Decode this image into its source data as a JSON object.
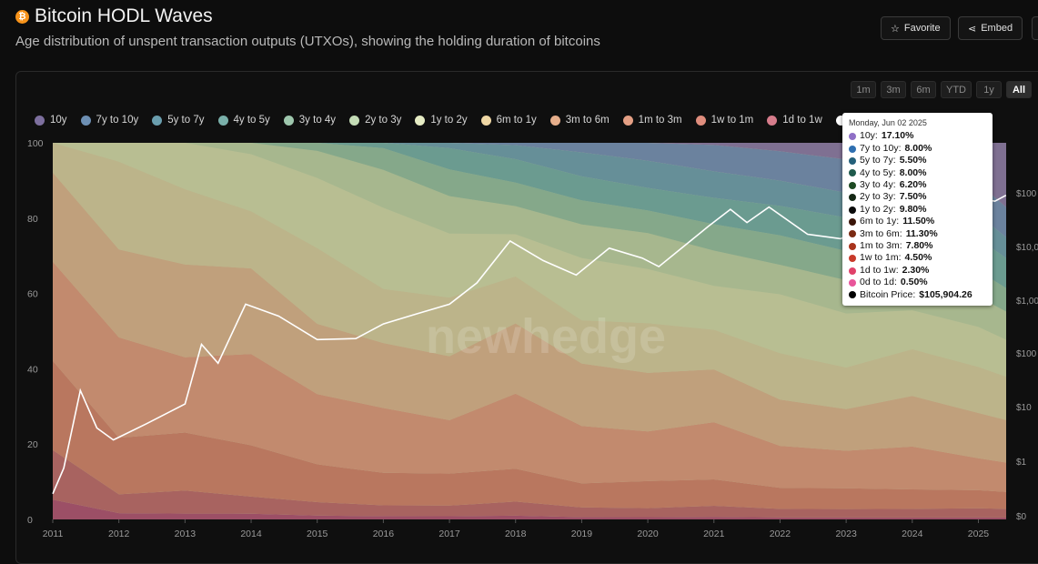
{
  "header": {
    "title": "Bitcoin HODL Waves",
    "subtitle": "Age distribution of unspent transaction outputs (UTXOs), showing the holding duration of bitcoins",
    "favorite_label": "Favorite",
    "embed_label": "Embed"
  },
  "range_buttons": [
    "1m",
    "3m",
    "6m",
    "YTD",
    "1y",
    "All"
  ],
  "active_range": "All",
  "watermark": "newhedge",
  "tooltip": {
    "date": "Monday, Jun 02 2025",
    "rows": [
      {
        "label": "10y:",
        "value": "17.10%",
        "color": "#8f6fc6"
      },
      {
        "label": "7y to 10y:",
        "value": "8.00%",
        "color": "#2f6fb0"
      },
      {
        "label": "5y to 7y:",
        "value": "5.50%",
        "color": "#24607a"
      },
      {
        "label": "4y to 5y:",
        "value": "8.00%",
        "color": "#1f5a4c"
      },
      {
        "label": "3y to 4y:",
        "value": "6.20%",
        "color": "#1d4a22"
      },
      {
        "label": "2y to 3y:",
        "value": "7.50%",
        "color": "#142814"
      },
      {
        "label": "1y to 2y:",
        "value": "9.80%",
        "color": "#0b0b0b"
      },
      {
        "label": "6m to 1y:",
        "value": "11.50%",
        "color": "#3a1408"
      },
      {
        "label": "3m to 6m:",
        "value": "11.30%",
        "color": "#7a2a12"
      },
      {
        "label": "1m to 3m:",
        "value": "7.80%",
        "color": "#a8331c"
      },
      {
        "label": "1w to 1m:",
        "value": "4.50%",
        "color": "#c83a2a"
      },
      {
        "label": "1d to 1w:",
        "value": "2.30%",
        "color": "#e0426a"
      },
      {
        "label": "0d to 1d:",
        "value": "0.50%",
        "color": "#e8559a"
      },
      {
        "label": "Bitcoin Price:",
        "value": "$105,904.26",
        "color": "#000000"
      }
    ]
  },
  "chart_data": {
    "type": "area",
    "stacked": true,
    "x": [
      "2011",
      "2012",
      "2013",
      "2014",
      "2015",
      "2016",
      "2017",
      "2018",
      "2019",
      "2020",
      "2021",
      "2022",
      "2023",
      "2024",
      "2025",
      "Jun 2025"
    ],
    "x_tick_labels": [
      "2011",
      "2012",
      "2013",
      "2014",
      "2015",
      "2016",
      "2017",
      "2018",
      "2019",
      "2020",
      "2021",
      "2022",
      "2023",
      "2024",
      "2025"
    ],
    "ylim": [
      0,
      100
    ],
    "y_ticks": [
      0,
      20,
      40,
      60,
      80,
      100
    ],
    "y_right_labels": [
      "$0",
      "$1",
      "$10",
      "$100",
      "$1,00",
      "$10,0",
      "$100"
    ],
    "y_right_log": true,
    "grid": false,
    "legend_position": "top",
    "legend": [
      {
        "name": "10y",
        "color": "#7d6f9e"
      },
      {
        "name": "7y to 10y",
        "color": "#6d8fb3"
      },
      {
        "name": "5y to 7y",
        "color": "#6a9eae"
      },
      {
        "name": "4y to 5y",
        "color": "#7ab0aa"
      },
      {
        "name": "3y to 4y",
        "color": "#9ec7ad"
      },
      {
        "name": "2y to 3y",
        "color": "#c4dcb6"
      },
      {
        "name": "1y to 2y",
        "color": "#e6ecc4"
      },
      {
        "name": "6m to 1y",
        "color": "#efd7a4"
      },
      {
        "name": "3m to 6m",
        "color": "#e6ae8b"
      },
      {
        "name": "1m to 3m",
        "color": "#e49f84"
      },
      {
        "name": "1w to 1m",
        "color": "#df8d7d"
      },
      {
        "name": "1d to 1w",
        "color": "#d67c8b"
      },
      {
        "name": "Bitcoin Price",
        "color": "#ffffff"
      }
    ],
    "series": [
      {
        "name": "10y",
        "color": "#7f7092",
        "values": [
          0,
          0,
          0,
          0,
          0,
          0,
          0,
          0,
          0,
          0,
          0.5,
          2,
          4,
          7,
          10,
          17.1
        ]
      },
      {
        "name": "7y to 10y",
        "color": "#6b829e",
        "values": [
          0,
          0,
          0,
          0,
          0,
          0,
          0,
          0.5,
          2,
          4,
          6,
          7,
          8,
          8,
          8,
          8.0
        ]
      },
      {
        "name": "5y to 7y",
        "color": "#668f98",
        "values": [
          0,
          0,
          0,
          0,
          0,
          0,
          1,
          3,
          5,
          6,
          6,
          6,
          6,
          6,
          6,
          5.5
        ]
      },
      {
        "name": "4y to 5y",
        "color": "#6b9b90",
        "values": [
          0,
          0,
          0,
          0,
          0,
          1,
          4,
          5,
          5,
          5,
          6,
          7,
          8,
          8,
          8,
          8.0
        ]
      },
      {
        "name": "3y to 4y",
        "color": "#85a88a",
        "values": [
          0,
          0,
          0,
          0,
          1.5,
          4,
          5,
          5,
          5,
          5,
          6,
          7,
          7,
          7,
          6.5,
          6.2
        ]
      },
      {
        "name": "2y to 3y",
        "color": "#a7b78e",
        "values": [
          0,
          0,
          0,
          2,
          5,
          7,
          7,
          6,
          7,
          8,
          8,
          7,
          8,
          7,
          7.5,
          7.5
        ]
      },
      {
        "name": "1y to 2y",
        "color": "#b8be92",
        "values": [
          0,
          3,
          8,
          10,
          13,
          15,
          12,
          9,
          13,
          12,
          10,
          14,
          13,
          10,
          10,
          9.8
        ]
      },
      {
        "name": "6m to 1y",
        "color": "#bcb48a",
        "values": [
          6,
          14,
          13,
          10,
          14,
          10,
          11,
          10,
          9,
          11,
          9,
          11,
          10,
          12,
          11.5,
          11.5
        ]
      },
      {
        "name": "3m to 6m",
        "color": "#c0a07c",
        "values": [
          18,
          14,
          16,
          15,
          13,
          12,
          12,
          15,
          13,
          13,
          12,
          11,
          10,
          13,
          11.3,
          11.3
        ]
      },
      {
        "name": "1m to 3m",
        "color": "#c28a6e",
        "values": [
          20,
          16,
          13,
          16,
          13,
          12,
          10,
          16,
          12,
          11,
          13,
          10,
          9,
          11,
          8,
          7.8
        ]
      },
      {
        "name": "1w to 1m",
        "color": "#b9775f",
        "values": [
          18,
          9,
          10,
          9,
          7,
          6,
          6,
          7,
          5,
          6,
          6,
          5,
          5,
          5,
          4.5,
          4.5
        ]
      },
      {
        "name": "1d to 1w",
        "color": "#a86360",
        "values": [
          10,
          3,
          4,
          3,
          2.5,
          2,
          2,
          3,
          2,
          2,
          2.5,
          2,
          2,
          2.2,
          2.3,
          2.3
        ]
      },
      {
        "name": "0d to 1d",
        "color": "#9c4f66",
        "values": [
          4,
          1,
          1,
          1,
          0.7,
          0.6,
          0.6,
          0.8,
          0.5,
          0.5,
          0.6,
          0.5,
          0.5,
          0.5,
          0.5,
          0.5
        ]
      }
    ],
    "price_series": {
      "name": "Bitcoin Price",
      "color": "#ffffff",
      "points": [
        [
          "2011-01",
          0.3
        ],
        [
          "2011-03",
          0.9
        ],
        [
          "2011-06",
          25
        ],
        [
          "2011-09",
          5
        ],
        [
          "2011-12",
          3
        ],
        [
          "2012-06",
          6
        ],
        [
          "2013-01",
          14
        ],
        [
          "2013-04",
          180
        ],
        [
          "2013-07",
          80
        ],
        [
          "2013-12",
          1000
        ],
        [
          "2014-06",
          600
        ],
        [
          "2015-01",
          220
        ],
        [
          "2015-08",
          230
        ],
        [
          "2016-01",
          430
        ],
        [
          "2016-07",
          660
        ],
        [
          "2017-01",
          1000
        ],
        [
          "2017-06",
          2500
        ],
        [
          "2017-12",
          15000
        ],
        [
          "2018-06",
          6500
        ],
        [
          "2018-12",
          3500
        ],
        [
          "2019-06",
          11000
        ],
        [
          "2019-12",
          7200
        ],
        [
          "2020-03",
          5000
        ],
        [
          "2020-12",
          28000
        ],
        [
          "2021-04",
          58000
        ],
        [
          "2021-07",
          33000
        ],
        [
          "2021-11",
          64000
        ],
        [
          "2022-06",
          20000
        ],
        [
          "2022-12",
          16500
        ],
        [
          "2023-06",
          30000
        ],
        [
          "2024-03",
          70000
        ],
        [
          "2024-08",
          57000
        ],
        [
          "2024-12",
          96000
        ],
        [
          "2025-04",
          82000
        ],
        [
          "2025-06",
          105904.26
        ]
      ]
    }
  }
}
